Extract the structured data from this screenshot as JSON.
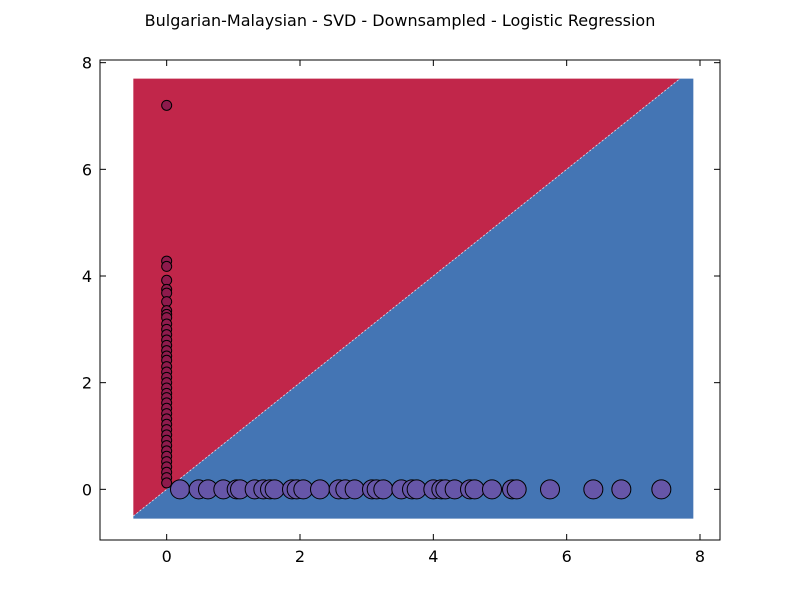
{
  "chart_data": {
    "type": "scatter",
    "title": "Bulgarian-Malaysian - SVD - Downsampled - Logistic Regression",
    "xlabel": "",
    "ylabel": "",
    "xlim": [
      -1,
      8.3
    ],
    "ylim": [
      -0.95,
      8.05
    ],
    "xticks": [
      0,
      2,
      4,
      6,
      8
    ],
    "yticks": [
      0,
      2,
      4,
      6,
      8
    ],
    "grid": false,
    "legend": "none",
    "decision_regions": {
      "extent_x": [
        -0.5,
        7.9
      ],
      "extent_y": [
        -0.55,
        7.7
      ],
      "boundary": "y = x",
      "class_above": "#c1264a",
      "class_below": "#4475b4"
    },
    "series": [
      {
        "color": "#8e1a4c",
        "marker_size": "small",
        "points": [
          [
            0,
            7.2
          ],
          [
            0,
            4.28
          ],
          [
            0,
            4.18
          ],
          [
            0,
            3.92
          ],
          [
            0,
            3.75
          ],
          [
            0,
            3.68
          ],
          [
            0,
            3.52
          ],
          [
            0,
            3.35
          ],
          [
            0,
            3.28
          ],
          [
            0,
            3.22
          ],
          [
            0,
            3.1
          ],
          [
            0,
            3.0
          ],
          [
            0,
            2.9
          ],
          [
            0,
            2.8
          ],
          [
            0,
            2.7
          ],
          [
            0,
            2.6
          ],
          [
            0,
            2.5
          ],
          [
            0,
            2.42
          ],
          [
            0,
            2.3
          ],
          [
            0,
            2.2
          ],
          [
            0,
            2.1
          ],
          [
            0,
            2.0
          ],
          [
            0,
            1.9
          ],
          [
            0,
            1.8
          ],
          [
            0,
            1.72
          ],
          [
            0,
            1.62
          ],
          [
            0,
            1.52
          ],
          [
            0,
            1.42
          ],
          [
            0,
            1.32
          ],
          [
            0,
            1.22
          ],
          [
            0,
            1.12
          ],
          [
            0,
            1.02
          ],
          [
            0,
            0.92
          ],
          [
            0,
            0.82
          ],
          [
            0,
            0.72
          ],
          [
            0,
            0.62
          ],
          [
            0,
            0.52
          ],
          [
            0,
            0.42
          ],
          [
            0,
            0.32
          ],
          [
            0,
            0.22
          ],
          [
            0,
            0.12
          ]
        ]
      },
      {
        "color": "#6656a8",
        "marker_size": "large",
        "points": [
          [
            0.2,
            0
          ],
          [
            0.48,
            0
          ],
          [
            0.62,
            0
          ],
          [
            0.85,
            0
          ],
          [
            1.05,
            0
          ],
          [
            1.1,
            0
          ],
          [
            1.32,
            0
          ],
          [
            1.45,
            0
          ],
          [
            1.55,
            0
          ],
          [
            1.62,
            0
          ],
          [
            1.88,
            0
          ],
          [
            1.95,
            0
          ],
          [
            2.05,
            0
          ],
          [
            2.3,
            0
          ],
          [
            2.58,
            0
          ],
          [
            2.68,
            0
          ],
          [
            2.82,
            0
          ],
          [
            3.08,
            0
          ],
          [
            3.15,
            0
          ],
          [
            3.25,
            0
          ],
          [
            3.52,
            0
          ],
          [
            3.68,
            0
          ],
          [
            3.75,
            0
          ],
          [
            4.0,
            0
          ],
          [
            4.12,
            0
          ],
          [
            4.18,
            0
          ],
          [
            4.32,
            0
          ],
          [
            4.55,
            0
          ],
          [
            4.62,
            0
          ],
          [
            4.88,
            0
          ],
          [
            5.18,
            0
          ],
          [
            5.25,
            0
          ],
          [
            5.75,
            0
          ],
          [
            6.4,
            0
          ],
          [
            6.82,
            0
          ],
          [
            7.42,
            0
          ]
        ]
      }
    ]
  }
}
